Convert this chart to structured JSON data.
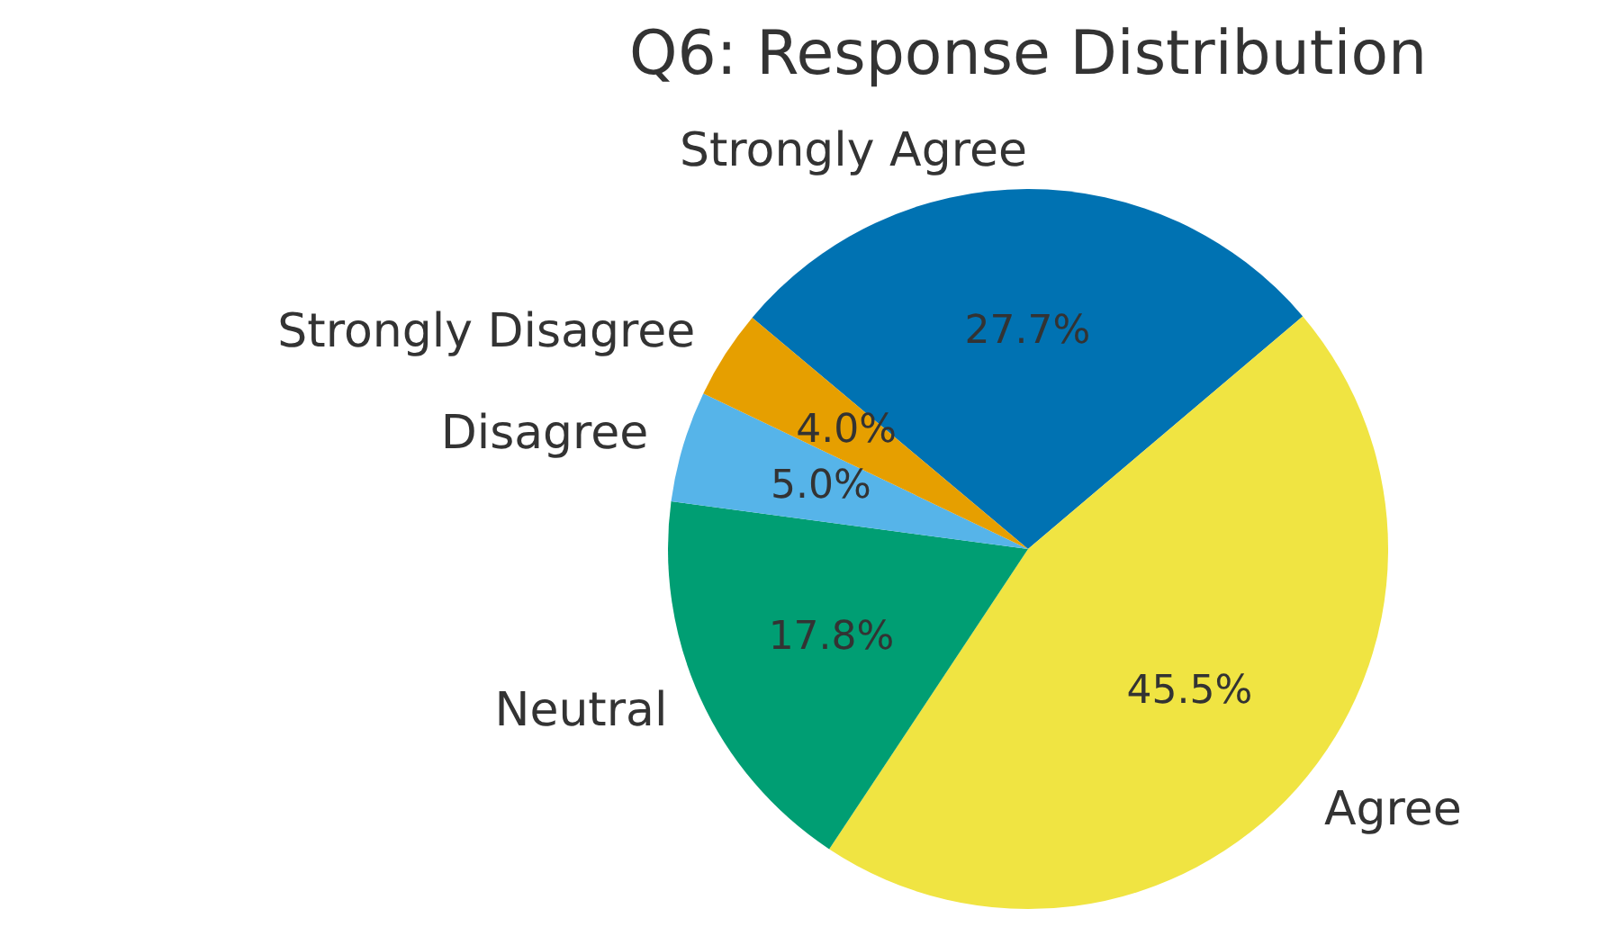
{
  "chart_data": {
    "type": "pie",
    "title": "Q6: Response Distribution",
    "categories": [
      "Strongly Agree",
      "Agree",
      "Neutral",
      "Disagree",
      "Strongly Disagree"
    ],
    "values": [
      27.7,
      45.5,
      17.8,
      5.0,
      4.0
    ],
    "colors": [
      "#0072b2",
      "#f0e442",
      "#009e73",
      "#56b4e9",
      "#e69f00"
    ],
    "value_labels": [
      "27.7%",
      "45.5%",
      "17.8%",
      "5.0%",
      "4.0%"
    ]
  }
}
